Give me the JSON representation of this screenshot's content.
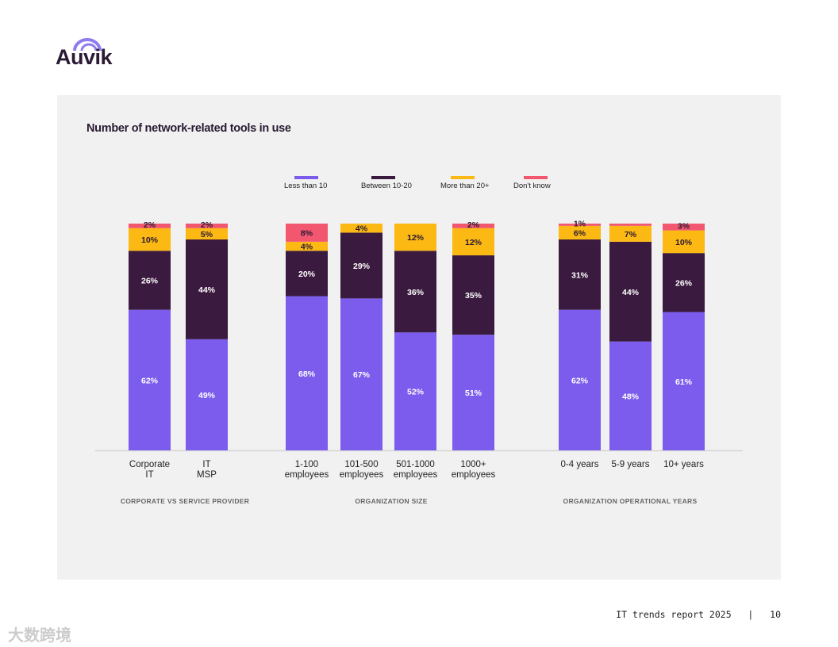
{
  "logo": {
    "text": "Auvik"
  },
  "footer": {
    "report": "IT trends report 2025",
    "separator": "|",
    "page": "10"
  },
  "watermark": "大数跨境",
  "chart_data": {
    "type": "bar",
    "stacked": true,
    "title": "Number of network-related tools in use",
    "legend": [
      "Less than 10",
      "Between 10-20",
      "More than 20+",
      "Don't know"
    ],
    "legend_placement": "top-center",
    "colors": [
      "#7b5cec",
      "#3a1a3e",
      "#fcb813",
      "#f2576f"
    ],
    "groups": [
      {
        "name": "CORPORATE VS SERVICE PROVIDER",
        "categories": [
          {
            "label": [
              "Corporate",
              "IT"
            ],
            "values": [
              62,
              26,
              10,
              2
            ]
          },
          {
            "label": [
              "IT",
              "MSP"
            ],
            "values": [
              49,
              44,
              5,
              2
            ]
          }
        ]
      },
      {
        "name": "ORGANIZATION SIZE",
        "categories": [
          {
            "label": [
              "1-100",
              "employees"
            ],
            "values": [
              68,
              20,
              4,
              8
            ]
          },
          {
            "label": [
              "101-500",
              "employees"
            ],
            "values": [
              67,
              29,
              4,
              0
            ]
          },
          {
            "label": [
              "501-1000",
              "employees"
            ],
            "values": [
              52,
              36,
              12,
              0
            ]
          },
          {
            "label": [
              "1000+",
              "employees"
            ],
            "values": [
              51,
              35,
              12,
              2
            ]
          }
        ]
      },
      {
        "name": "ORGANIZATION OPERATIONAL YEARS",
        "categories": [
          {
            "label": [
              "0-4 years"
            ],
            "values": [
              62,
              31,
              6,
              1
            ]
          },
          {
            "label": [
              "5-9 years"
            ],
            "values": [
              48,
              44,
              7,
              1
            ]
          },
          {
            "label": [
              "10+ years"
            ],
            "values": [
              61,
              26,
              10,
              3
            ]
          }
        ]
      }
    ],
    "hidden_labels": [
      [
        2,
        1,
        3
      ]
    ],
    "ylim": [
      0,
      100
    ]
  }
}
